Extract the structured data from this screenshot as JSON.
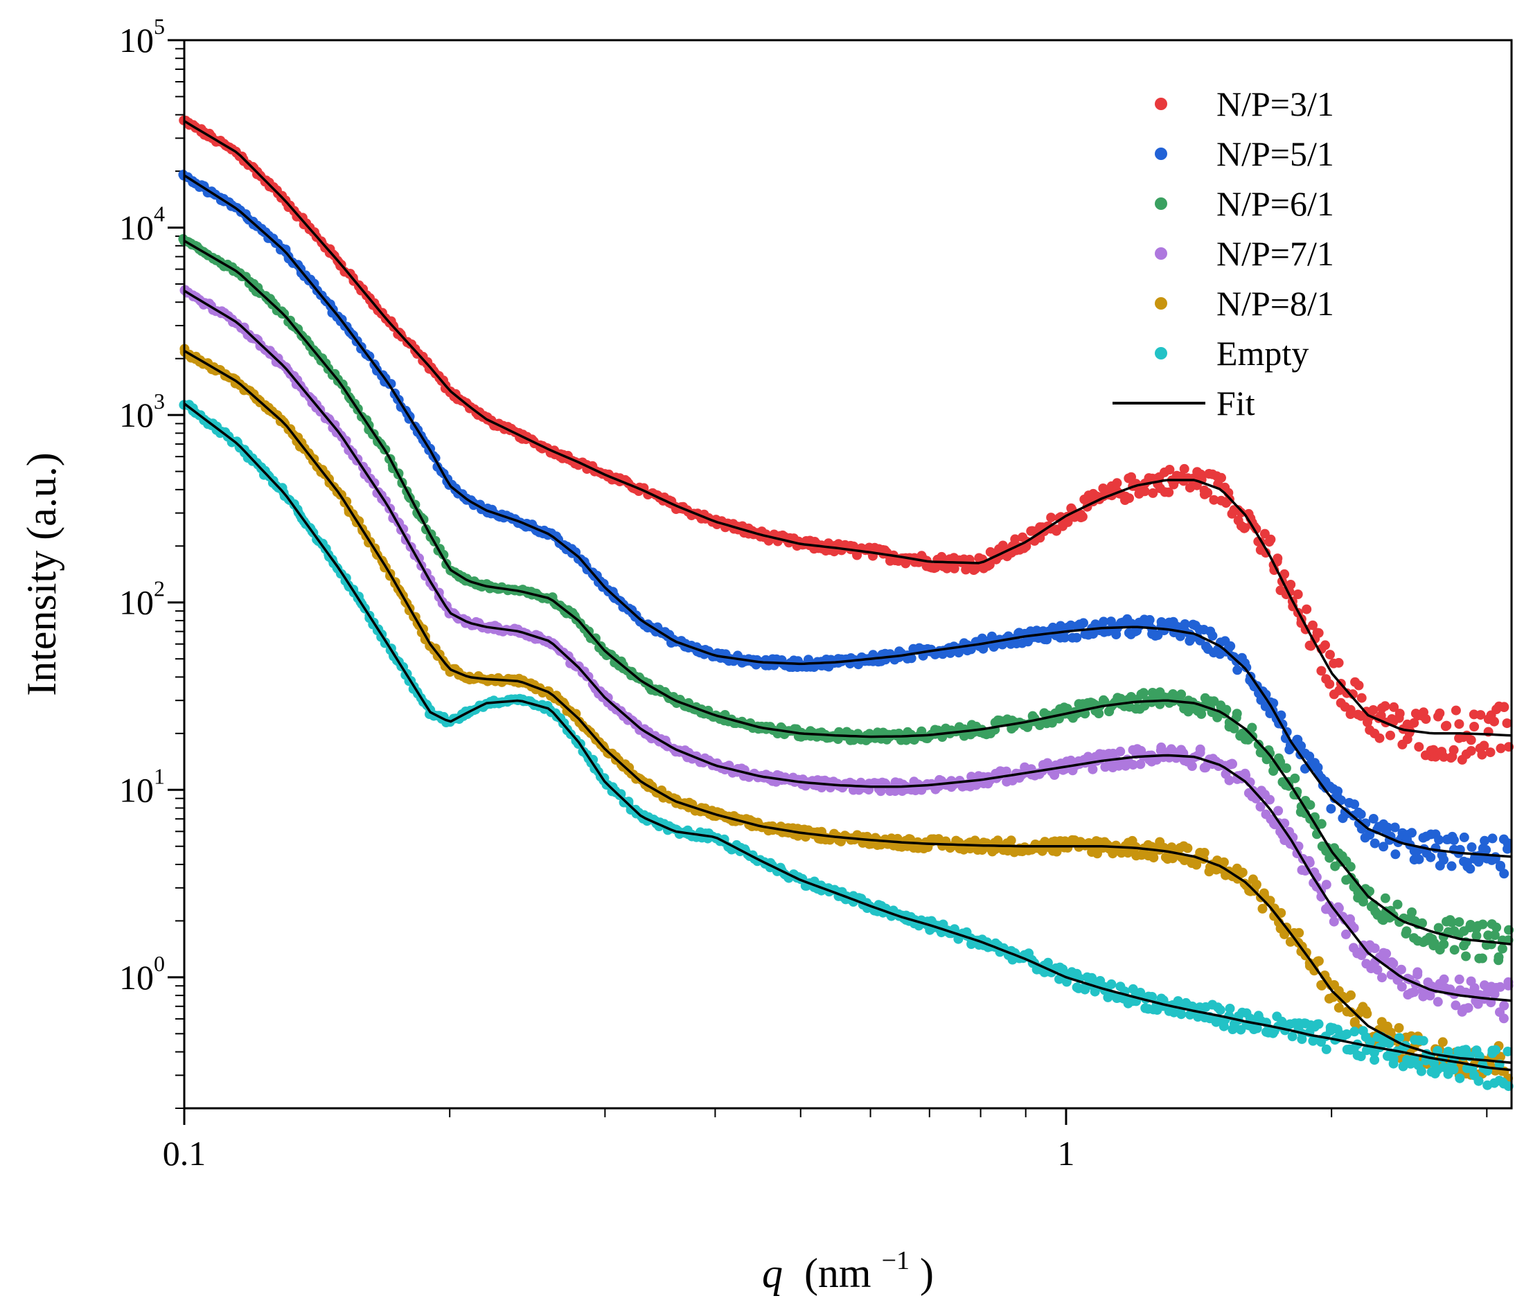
{
  "chart_data": {
    "type": "scatter",
    "title": "",
    "xlabel": {
      "symbol": "q",
      "unit_prefix": "(nm",
      "unit_exp": "−1",
      "unit_suffix": ")"
    },
    "ylabel": "Intensity (a.u.)",
    "x_scale": "log",
    "y_scale": "log",
    "xlim": [
      0.1,
      3.2
    ],
    "ylim": [
      0.2,
      100000
    ],
    "x_ticks": [
      {
        "value": 0.1,
        "label": "0.1"
      },
      {
        "value": 1,
        "label": "1"
      }
    ],
    "y_ticks": [
      {
        "value": 1,
        "base": "10",
        "exp": "0"
      },
      {
        "value": 10,
        "base": "10",
        "exp": "1"
      },
      {
        "value": 100,
        "base": "10",
        "exp": "2"
      },
      {
        "value": 1000,
        "base": "10",
        "exp": "3"
      },
      {
        "value": 10000,
        "base": "10",
        "exp": "4"
      },
      {
        "value": 100000,
        "base": "10",
        "exp": "5"
      }
    ],
    "legend_position": "top-right",
    "fit_legend_label": "Fit",
    "fit_color": "#000000",
    "x": [
      0.1,
      0.115,
      0.13,
      0.15,
      0.17,
      0.19,
      0.2,
      0.21,
      0.22,
      0.24,
      0.26,
      0.28,
      0.3,
      0.33,
      0.36,
      0.4,
      0.45,
      0.5,
      0.55,
      0.6,
      0.65,
      0.7,
      0.8,
      0.9,
      1.0,
      1.1,
      1.2,
      1.3,
      1.4,
      1.5,
      1.6,
      1.7,
      1.8,
      1.9,
      2.0,
      2.2,
      2.4,
      2.6,
      2.8,
      3.0,
      3.2
    ],
    "series": [
      {
        "name": "N/P=3/1",
        "color": "#e8393c",
        "values": [
          37000,
          25000,
          14000,
          6500,
          3200,
          1800,
          1350,
          1120,
          950,
          780,
          650,
          560,
          480,
          400,
          330,
          270,
          230,
          205,
          195,
          185,
          175,
          165,
          162,
          210,
          290,
          360,
          420,
          450,
          450,
          400,
          290,
          180,
          105,
          65,
          42,
          25,
          21,
          20,
          20,
          19.8,
          19.5
        ]
      },
      {
        "name": "N/P=5/1",
        "color": "#2162d6",
        "values": [
          19000,
          12500,
          7500,
          3300,
          1500,
          650,
          420,
          350,
          310,
          270,
          230,
          175,
          120,
          80,
          62,
          52,
          48,
          47,
          48,
          50,
          52,
          55,
          60,
          66,
          70,
          73,
          74,
          72,
          68,
          58,
          44,
          29,
          18,
          12.5,
          9,
          6.2,
          5.2,
          4.8,
          4.6,
          4.5,
          4.4
        ]
      },
      {
        "name": "N/P=6/1",
        "color": "#3aa060",
        "values": [
          8500,
          5800,
          3400,
          1500,
          620,
          230,
          150,
          130,
          122,
          115,
          105,
          80,
          55,
          38,
          30,
          25,
          21.5,
          20,
          19.5,
          19.2,
          19.3,
          19.6,
          21,
          23,
          25.5,
          28,
          29.5,
          30,
          29,
          26,
          21,
          15.5,
          10.5,
          7,
          4.7,
          2.7,
          2,
          1.75,
          1.6,
          1.55,
          1.5
        ]
      },
      {
        "name": "N/P=7/1",
        "color": "#ae78de",
        "values": [
          4600,
          3100,
          1800,
          800,
          330,
          130,
          88,
          78,
          74,
          70,
          62,
          45,
          31,
          21,
          16.5,
          13.5,
          11.8,
          11,
          10.6,
          10.4,
          10.4,
          10.6,
          11.3,
          12.3,
          13.3,
          14.3,
          15,
          15.3,
          15,
          13.5,
          11,
          8,
          5.4,
          3.5,
          2.4,
          1.35,
          1,
          0.85,
          0.8,
          0.77,
          0.75
        ]
      },
      {
        "name": "N/P=8/1",
        "color": "#c8940e",
        "values": [
          2200,
          1500,
          900,
          380,
          150,
          60,
          44,
          40,
          39,
          38,
          33,
          24,
          16.5,
          11,
          8.7,
          7.4,
          6.4,
          5.9,
          5.6,
          5.4,
          5.25,
          5.15,
          5.05,
          5,
          5,
          5,
          4.9,
          4.7,
          4.4,
          3.9,
          3.2,
          2.4,
          1.7,
          1.2,
          0.85,
          0.55,
          0.44,
          0.39,
          0.37,
          0.36,
          0.35
        ]
      },
      {
        "name": "Empty",
        "color": "#22c2c6",
        "values": [
          1150,
          700,
          380,
          150,
          60,
          26,
          23,
          26,
          29,
          30,
          27,
          18,
          11,
          7.2,
          6,
          5.6,
          4.2,
          3.3,
          2.8,
          2.4,
          2.1,
          1.9,
          1.55,
          1.25,
          1,
          0.87,
          0.78,
          0.71,
          0.66,
          0.62,
          0.58,
          0.55,
          0.52,
          0.49,
          0.47,
          0.43,
          0.4,
          0.37,
          0.35,
          0.33,
          0.32
        ]
      }
    ]
  }
}
